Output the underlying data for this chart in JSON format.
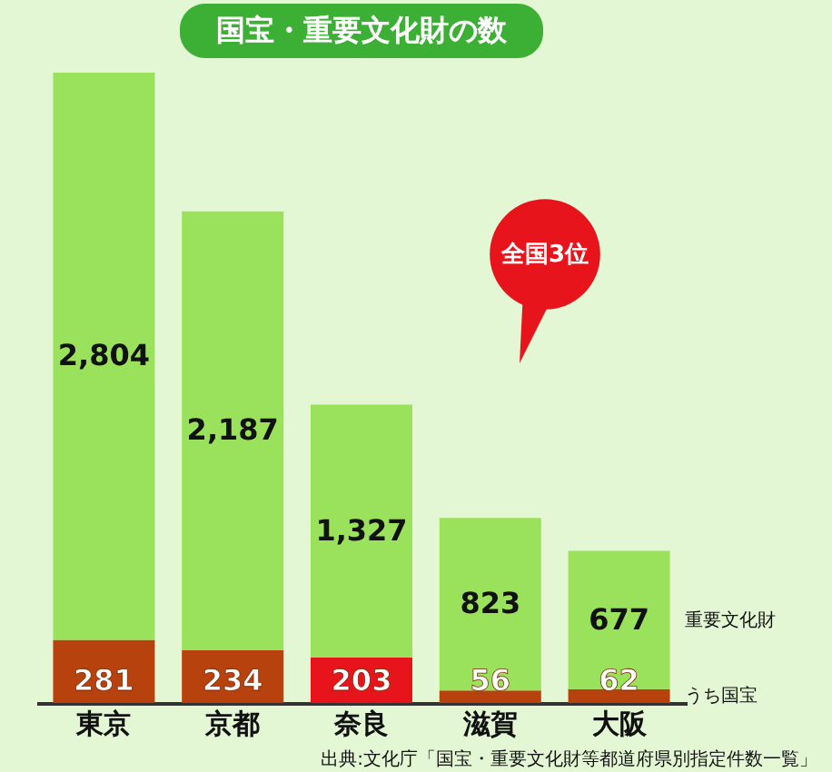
{
  "chart_data": {
    "type": "bar",
    "stacked": true,
    "title": "国宝・重要文化財の数",
    "categories": [
      "東京",
      "京都",
      "奈良",
      "滋賀",
      "大阪"
    ],
    "series": [
      {
        "name": "うち国宝",
        "colors": [
          "#b8420e",
          "#b8420e",
          "#e8141c",
          "#b8420e",
          "#b8420e"
        ],
        "values": [
          281,
          234,
          203,
          56,
          62
        ],
        "value_labels": [
          "281",
          "234",
          "203",
          "56",
          "62"
        ]
      },
      {
        "name": "重要文化財",
        "color": "#9be25c",
        "values": [
          2523,
          1953,
          1124,
          767,
          615
        ]
      }
    ],
    "totals": [
      "2,804",
      "2,187",
      "1,327",
      "823",
      "677"
    ],
    "ylim": [
      0,
      2804
    ],
    "grid": false,
    "legend": false,
    "annotations": [
      "全国3位",
      "出典:文化庁「国宝・重要文化財等都道府県別指定件数一覧」"
    ]
  }
}
